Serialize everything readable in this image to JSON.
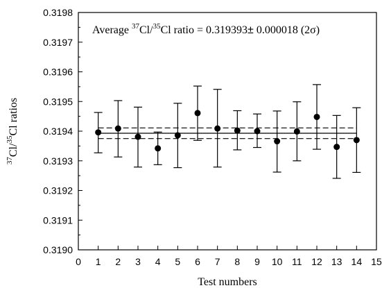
{
  "chart_data": {
    "type": "scatter",
    "title": "",
    "annotation": {
      "prefix": "Average ",
      "sup1": "37",
      "mid1": "Cl/",
      "sup2": "35",
      "mid2": "Cl ratio = 0.319393",
      "pm": "±",
      "suffix": " 0.000018 (2σ)"
    },
    "xlabel": "Test numbers",
    "ylabel": {
      "sup1": "37",
      "mid": "Cl/",
      "sup2": "35",
      "end": "Cl ratios"
    },
    "xlim": [
      0,
      15
    ],
    "ylim": [
      0.319,
      0.3198
    ],
    "x_ticks": [
      "0",
      "1",
      "2",
      "3",
      "4",
      "5",
      "6",
      "7",
      "8",
      "9",
      "10",
      "11",
      "12",
      "13",
      "14",
      "15"
    ],
    "y_ticks": [
      "0.3190",
      "0.3191",
      "0.3192",
      "0.3193",
      "0.3194",
      "0.3195",
      "0.3196",
      "0.3197",
      "0.3198"
    ],
    "grid": false,
    "average_line": 0.319393,
    "band": [
      0.319375,
      0.319411
    ],
    "points": [
      {
        "x": 1,
        "y": 0.319396,
        "lo": 0.319327,
        "hi": 0.319463
      },
      {
        "x": 2,
        "y": 0.319409,
        "lo": 0.319313,
        "hi": 0.319503
      },
      {
        "x": 3,
        "y": 0.319381,
        "lo": 0.319279,
        "hi": 0.319481
      },
      {
        "x": 4,
        "y": 0.319342,
        "lo": 0.319287,
        "hi": 0.319397
      },
      {
        "x": 5,
        "y": 0.319386,
        "lo": 0.319277,
        "hi": 0.319494
      },
      {
        "x": 6,
        "y": 0.319461,
        "lo": 0.319369,
        "hi": 0.319552
      },
      {
        "x": 7,
        "y": 0.319409,
        "lo": 0.319279,
        "hi": 0.319541
      },
      {
        "x": 8,
        "y": 0.319402,
        "lo": 0.319337,
        "hi": 0.319469
      },
      {
        "x": 9,
        "y": 0.3194,
        "lo": 0.319345,
        "hi": 0.319458
      },
      {
        "x": 10,
        "y": 0.319366,
        "lo": 0.319262,
        "hi": 0.319468
      },
      {
        "x": 11,
        "y": 0.319399,
        "lo": 0.3193,
        "hi": 0.319499
      },
      {
        "x": 12,
        "y": 0.319448,
        "lo": 0.319339,
        "hi": 0.319557
      },
      {
        "x": 13,
        "y": 0.319347,
        "lo": 0.319241,
        "hi": 0.319453
      },
      {
        "x": 14,
        "y": 0.31937,
        "lo": 0.319261,
        "hi": 0.319479
      }
    ]
  }
}
